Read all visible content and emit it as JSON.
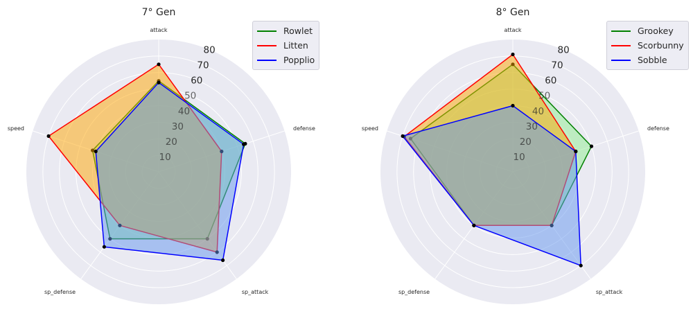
{
  "chart_data": [
    {
      "type": "radar",
      "title": "7° Gen",
      "categories": [
        "attack",
        "defense",
        "sp_attack",
        "sp_defense",
        "speed"
      ],
      "rlim": [
        0,
        80
      ],
      "radial_ticks": [
        10,
        20,
        30,
        40,
        50,
        60,
        70,
        80
      ],
      "grid": true,
      "legend_position": "top-right",
      "series": [
        {
          "name": "Rowlet",
          "color": "#008000",
          "fill": "#90ee90",
          "values": [
            55,
            55,
            50,
            50,
            42
          ]
        },
        {
          "name": "Litten",
          "color": "#ff0000",
          "fill": "#ffa500",
          "values": [
            65,
            40,
            60,
            40,
            70
          ]
        },
        {
          "name": "Popplio",
          "color": "#0000ff",
          "fill": "#6495ed",
          "values": [
            54,
            54,
            66,
            56,
            40
          ]
        }
      ]
    },
    {
      "type": "radar",
      "title": "8° Gen",
      "categories": [
        "attack",
        "defense",
        "sp_attack",
        "sp_defense",
        "speed"
      ],
      "rlim": [
        0,
        80
      ],
      "radial_ticks": [
        10,
        20,
        30,
        40,
        50,
        60,
        70,
        80
      ],
      "grid": true,
      "legend_position": "top-right",
      "series": [
        {
          "name": "Grookey",
          "color": "#008000",
          "fill": "#90ee90",
          "values": [
            65,
            50,
            40,
            40,
            65
          ]
        },
        {
          "name": "Scorbunny",
          "color": "#ff0000",
          "fill": "#ffa500",
          "values": [
            71,
            40,
            40,
            40,
            69
          ]
        },
        {
          "name": "Sobble",
          "color": "#0000ff",
          "fill": "#6495ed",
          "values": [
            40,
            40,
            70,
            40,
            70
          ]
        }
      ]
    }
  ]
}
